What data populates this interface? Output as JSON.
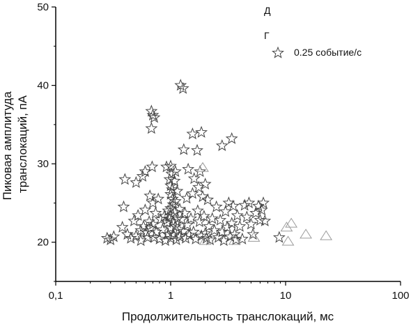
{
  "chart_data": {
    "type": "scatter",
    "title": "",
    "xlabel": "Продолжительность транслокаций, мс",
    "ylabel_lines": [
      "Пиковая амплитуда",
      "транслокаций, пА"
    ],
    "xscale": "log",
    "xlim": [
      0.1,
      100
    ],
    "ylim": [
      15,
      50
    ],
    "xticks": [
      {
        "value": 0.1,
        "label": "0,1"
      },
      {
        "value": 1,
        "label": "1"
      },
      {
        "value": 10,
        "label": "10"
      },
      {
        "value": 100,
        "label": "100"
      }
    ],
    "yticks": [
      {
        "value": 20,
        "label": "20"
      },
      {
        "value": 30,
        "label": "30"
      },
      {
        "value": 40,
        "label": "40"
      },
      {
        "value": 50,
        "label": "50"
      }
    ],
    "grid": false,
    "legend_position": "top-right",
    "legend_texts": [
      "Д",
      "Г",
      "0.25 событие/с"
    ],
    "series": [
      {
        "marker": "star",
        "color": "#444444",
        "points": [
          [
            0.28,
            20.5
          ],
          [
            0.3,
            20.3
          ],
          [
            0.32,
            20.7
          ],
          [
            0.38,
            21.9
          ],
          [
            0.39,
            24.5
          ],
          [
            0.4,
            28.0
          ],
          [
            0.42,
            21.0
          ],
          [
            0.45,
            20.5
          ],
          [
            0.48,
            22.7
          ],
          [
            0.5,
            27.6
          ],
          [
            0.5,
            20.8
          ],
          [
            0.52,
            23.4
          ],
          [
            0.55,
            21.5
          ],
          [
            0.55,
            20.2
          ],
          [
            0.57,
            28.4
          ],
          [
            0.58,
            22.0
          ],
          [
            0.6,
            29.0
          ],
          [
            0.6,
            24.1
          ],
          [
            0.62,
            21.2
          ],
          [
            0.63,
            20.6
          ],
          [
            0.65,
            22.6
          ],
          [
            0.66,
            25.9
          ],
          [
            0.67,
            21.8
          ],
          [
            0.68,
            36.7
          ],
          [
            0.68,
            34.5
          ],
          [
            0.69,
            29.6
          ],
          [
            0.7,
            36.2
          ],
          [
            0.7,
            25.0
          ],
          [
            0.7,
            22.3
          ],
          [
            0.72,
            35.9
          ],
          [
            0.72,
            20.6
          ],
          [
            0.74,
            23.7
          ],
          [
            0.75,
            21.3
          ],
          [
            0.78,
            25.5
          ],
          [
            0.8,
            20.4
          ],
          [
            0.82,
            22.9
          ],
          [
            0.85,
            21.6
          ],
          [
            0.88,
            23.3
          ],
          [
            0.9,
            20.2
          ],
          [
            0.92,
            29.6
          ],
          [
            0.93,
            22.5
          ],
          [
            0.95,
            24.0
          ],
          [
            0.95,
            21.0
          ],
          [
            0.97,
            23.0
          ],
          [
            0.98,
            28.0
          ],
          [
            1.0,
            29.7
          ],
          [
            1.0,
            27.2
          ],
          [
            1.0,
            26.1
          ],
          [
            1.0,
            24.3
          ],
          [
            1.0,
            23.4
          ],
          [
            1.0,
            21.8
          ],
          [
            1.0,
            20.5
          ],
          [
            1.02,
            28.7
          ],
          [
            1.03,
            26.7
          ],
          [
            1.04,
            25.5
          ],
          [
            1.05,
            24.8
          ],
          [
            1.05,
            22.6
          ],
          [
            1.06,
            20.9
          ],
          [
            1.08,
            27.8
          ],
          [
            1.08,
            23.8
          ],
          [
            1.1,
            29.0
          ],
          [
            1.1,
            25.2
          ],
          [
            1.1,
            22.0
          ],
          [
            1.12,
            20.3
          ],
          [
            1.14,
            26.5
          ],
          [
            1.15,
            23.0
          ],
          [
            1.18,
            21.6
          ],
          [
            1.2,
            24.2
          ],
          [
            1.2,
            20.7
          ],
          [
            1.22,
            40.0
          ],
          [
            1.25,
            22.9
          ],
          [
            1.28,
            39.6
          ],
          [
            1.3,
            31.8
          ],
          [
            1.3,
            21.4
          ],
          [
            1.33,
            23.7
          ],
          [
            1.35,
            20.5
          ],
          [
            1.38,
            25.6
          ],
          [
            1.4,
            22.2
          ],
          [
            1.42,
            29.3
          ],
          [
            1.45,
            20.9
          ],
          [
            1.5,
            23.0
          ],
          [
            1.55,
            33.8
          ],
          [
            1.55,
            26.2
          ],
          [
            1.58,
            21.3
          ],
          [
            1.6,
            28.1
          ],
          [
            1.65,
            20.4
          ],
          [
            1.7,
            31.7
          ],
          [
            1.72,
            24.0
          ],
          [
            1.75,
            27.0
          ],
          [
            1.78,
            22.6
          ],
          [
            1.8,
            29.0
          ],
          [
            1.85,
            34.0
          ],
          [
            1.85,
            20.8
          ],
          [
            1.9,
            25.8
          ],
          [
            1.95,
            23.3
          ],
          [
            2.0,
            27.4
          ],
          [
            2.0,
            21.1
          ],
          [
            2.05,
            20.5
          ],
          [
            2.1,
            25.4
          ],
          [
            2.15,
            22.0
          ],
          [
            2.2,
            20.3
          ],
          [
            2.3,
            23.0
          ],
          [
            2.4,
            21.5
          ],
          [
            2.5,
            24.5
          ],
          [
            2.6,
            20.6
          ],
          [
            2.7,
            22.8
          ],
          [
            2.8,
            32.3
          ],
          [
            2.8,
            21.3
          ],
          [
            2.9,
            20.2
          ],
          [
            3.0,
            23.9
          ],
          [
            3.1,
            21.9
          ],
          [
            3.2,
            25.0
          ],
          [
            3.3,
            20.7
          ],
          [
            3.4,
            33.2
          ],
          [
            3.4,
            22.4
          ],
          [
            3.5,
            24.6
          ],
          [
            3.6,
            21.0
          ],
          [
            3.7,
            20.3
          ],
          [
            3.8,
            23.4
          ],
          [
            4.0,
            22.0
          ],
          [
            4.2,
            20.4
          ],
          [
            4.4,
            24.7
          ],
          [
            4.6,
            23.2
          ],
          [
            4.8,
            25.0
          ],
          [
            5.0,
            22.3
          ],
          [
            5.2,
            21.0
          ],
          [
            5.5,
            23.7
          ],
          [
            5.8,
            24.6
          ],
          [
            6.0,
            22.8
          ],
          [
            6.2,
            24.1
          ],
          [
            6.4,
            25.0
          ],
          [
            6.6,
            22.7
          ],
          [
            8.8,
            20.6
          ]
        ]
      },
      {
        "marker": "triangle",
        "color": "#9a9a9a",
        "points": [
          [
            1.9,
            29.5
          ],
          [
            2.0,
            20.2
          ],
          [
            3.6,
            20.2
          ],
          [
            5.3,
            20.6
          ],
          [
            10.2,
            21.9
          ],
          [
            10.5,
            20.1
          ],
          [
            11.2,
            22.4
          ],
          [
            15.0,
            21.0
          ],
          [
            22.5,
            20.8
          ]
        ]
      }
    ]
  }
}
